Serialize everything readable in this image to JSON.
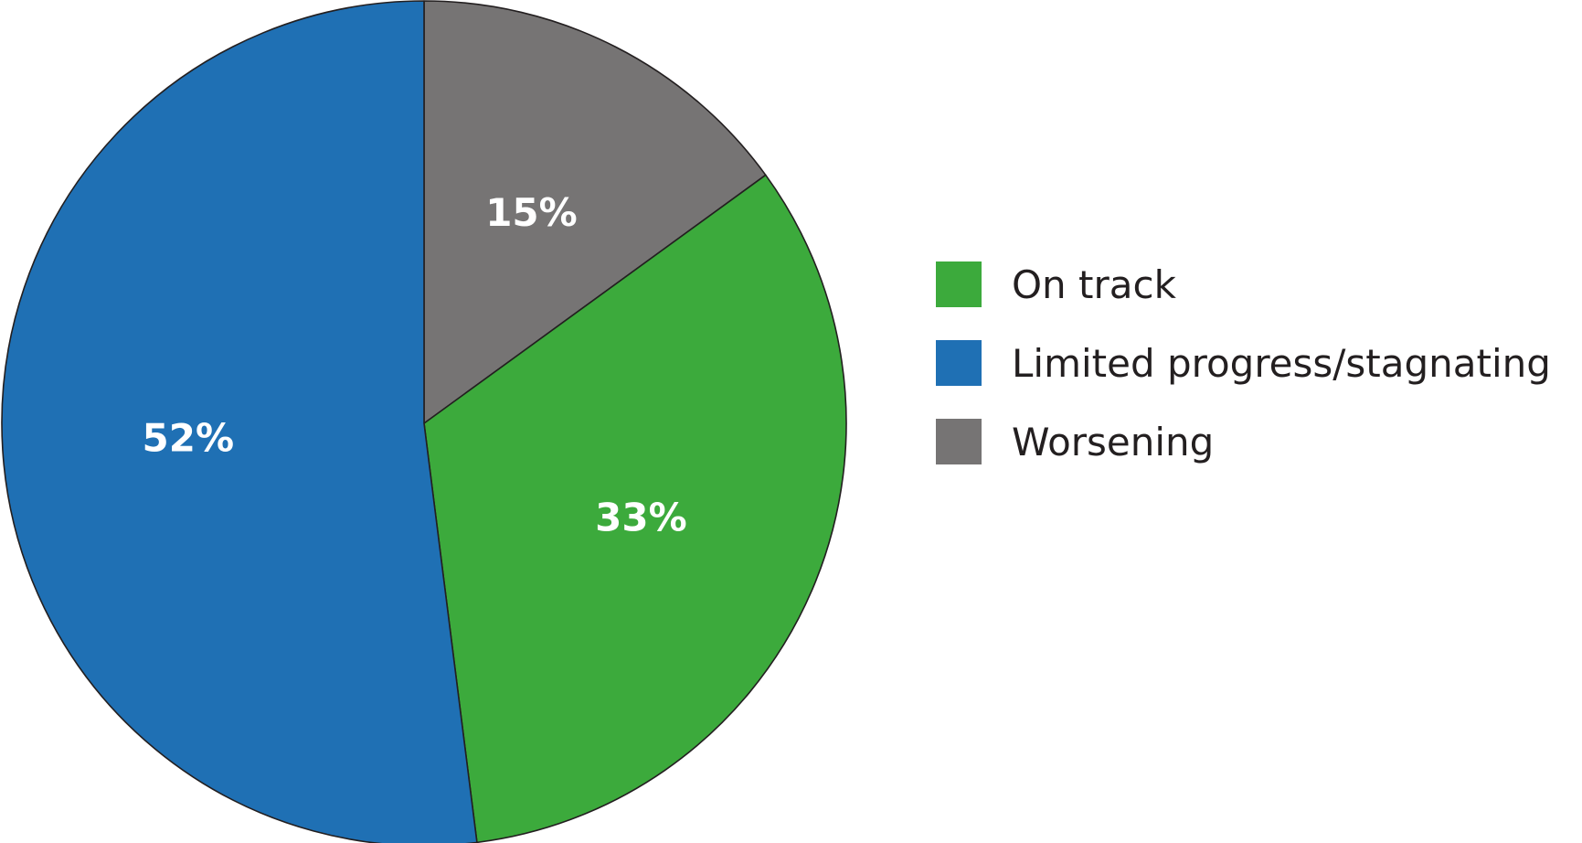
{
  "chart_data": {
    "type": "pie",
    "title": "",
    "start_angle_deg": 0,
    "direction": "clockwise",
    "slices": [
      {
        "label": "Worsening",
        "value": 15,
        "value_label": "15%",
        "color": "#767474"
      },
      {
        "label": "On track",
        "value": 33,
        "value_label": "33%",
        "color": "#3caa3c"
      },
      {
        "label": "Limited progress/stagnating",
        "value": 52,
        "value_label": "52%",
        "color": "#1f70b4"
      }
    ],
    "legend": {
      "placement": "right",
      "entries": [
        {
          "label": "On track",
          "color": "#3caa3c"
        },
        {
          "label": "Limited progress/stagnating",
          "color": "#1f70b4"
        },
        {
          "label": "Worsening",
          "color": "#767474"
        }
      ]
    },
    "outline_color": "#231f20"
  }
}
